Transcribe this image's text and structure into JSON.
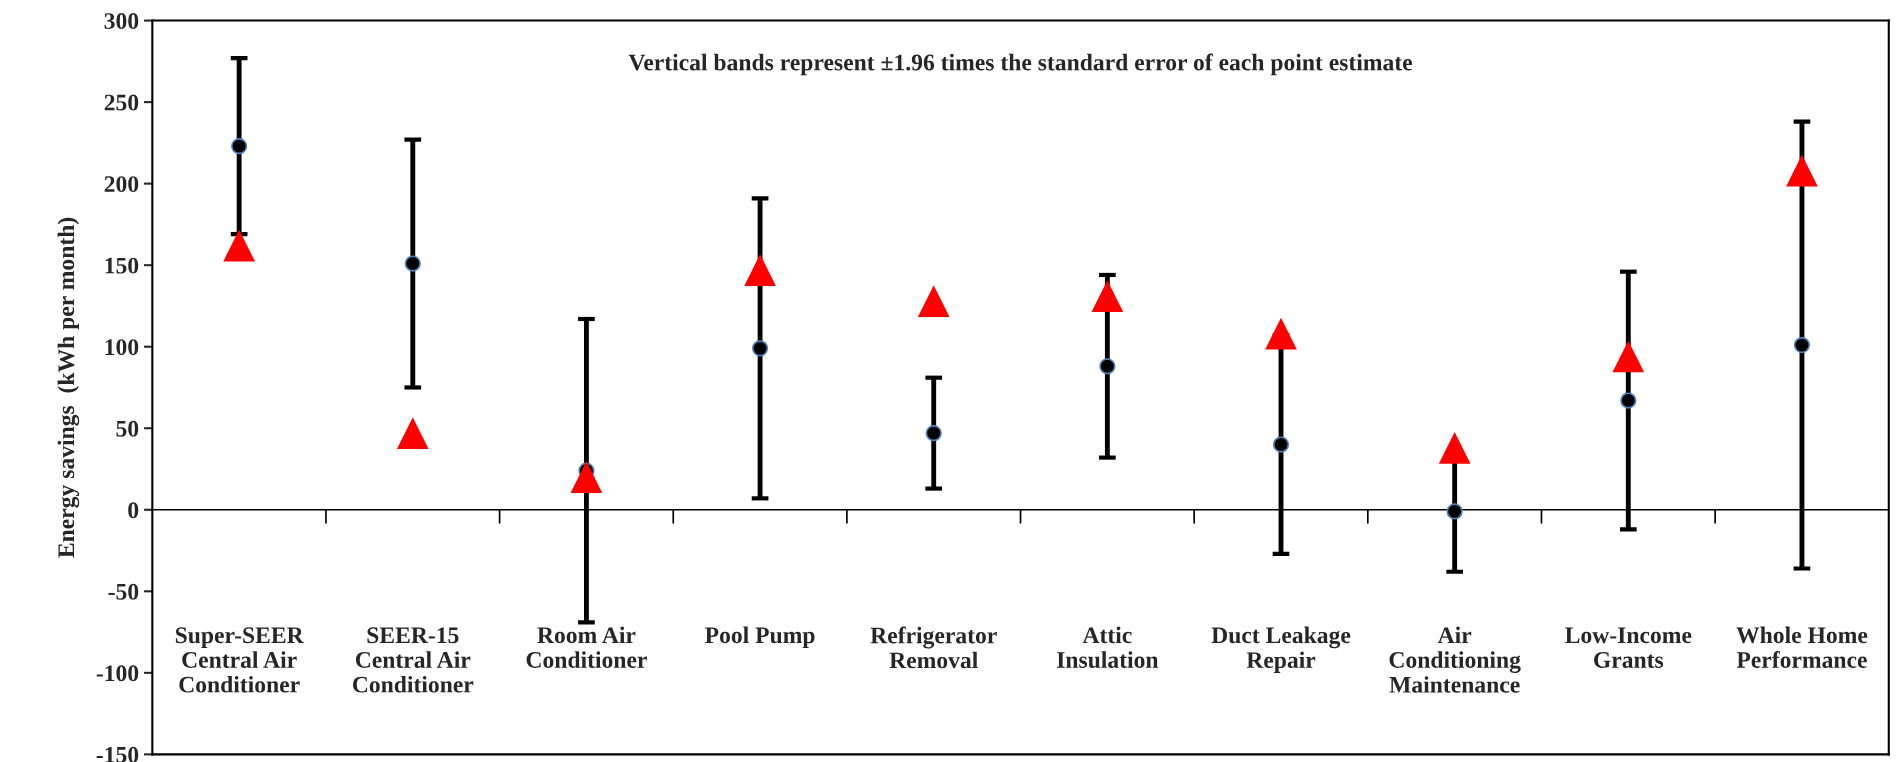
{
  "chart_data": {
    "type": "scatter",
    "ylabel": "Energy savings  (kWh per month)",
    "annotations": [
      "Vertical bands represent ±1.96 times the standard error of each point estimate"
    ],
    "categories": [
      "Super-SEER\nCentral Air\nConditioner",
      "SEER-15\nCentral Air\nConditioner",
      "Room Air\nConditioner",
      "Pool Pump",
      "Refrigerator\nRemoval",
      "Attic\nInsulation",
      "Duct Leakage\nRepair",
      "Air\nConditioning\nMaintenance",
      "Low-Income\nGrants",
      "Whole Home\nPerformance"
    ],
    "series": [
      {
        "marker": "triangle",
        "color": "#ff0000",
        "values": [
          162,
          47,
          20,
          147,
          128,
          131,
          108,
          38,
          94,
          208
        ]
      },
      {
        "marker": "circle",
        "color": "#000000",
        "values": [
          223,
          151,
          24,
          99,
          47,
          88,
          40,
          -1,
          67,
          101
        ],
        "errors": [
          54,
          76,
          93,
          92,
          34,
          56,
          67,
          37,
          79,
          137
        ]
      }
    ],
    "ylim": [
      -150,
      300
    ],
    "yticks": [
      -150,
      -100,
      -50,
      0,
      50,
      100,
      150,
      200,
      250,
      300
    ],
    "ref_lines": [
      {
        "axis": "y",
        "value": 0,
        "color": "#000000"
      }
    ],
    "grid": false,
    "legend": false
  }
}
